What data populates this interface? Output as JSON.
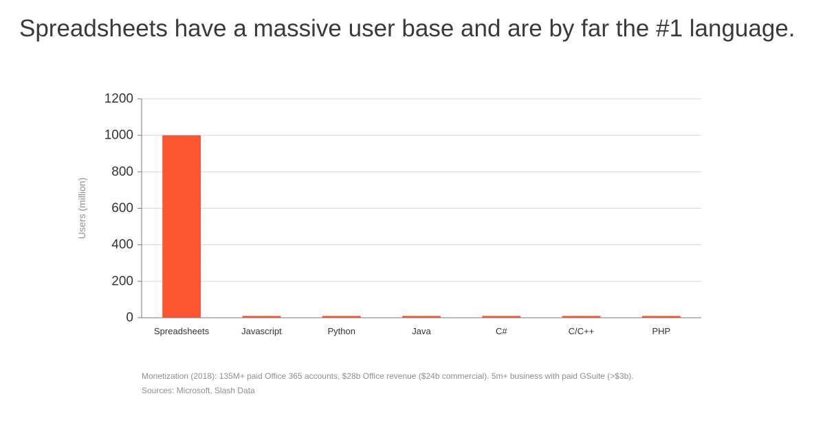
{
  "colors": {
    "bar": "#fd5531",
    "grid": "#d8d8d8",
    "axis": "#7a7a7a",
    "text": "#333333",
    "muted": "#8f8f8f"
  },
  "slide": {
    "title": "Spreadsheets have a massive user base and are by far the #1 language.",
    "footnote": {
      "line1": "Monetization (2018): 135M+ paid Office 365 accounts, $28b Office revenue ($24b commercial). 5m+ business with paid GSuite (>$3b).",
      "line2": "Sources: Microsoft, Slash Data"
    }
  },
  "chart_data": {
    "type": "bar",
    "categories": [
      "Spreadsheets",
      "Javascript",
      "Python",
      "Java",
      "C#",
      "C/C++",
      "PHP"
    ],
    "values": [
      1000,
      10,
      10,
      10,
      10,
      10,
      10
    ],
    "ylabel": "Users (million)",
    "ylim": [
      0,
      1200
    ],
    "yticks": [
      0,
      200,
      400,
      600,
      800,
      1000,
      1200
    ],
    "grid": true
  }
}
